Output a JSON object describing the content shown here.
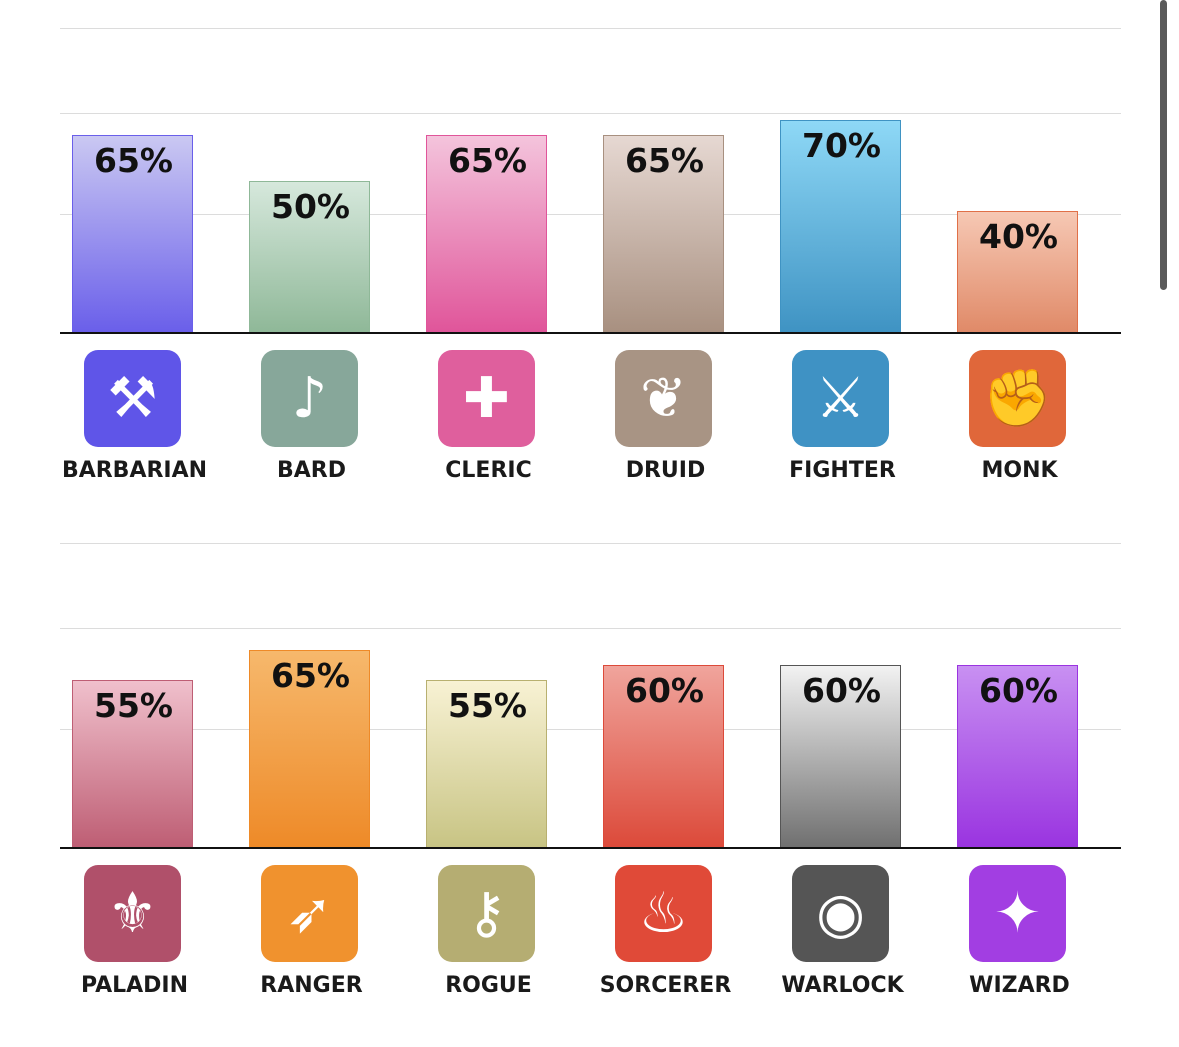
{
  "chart_data": [
    {
      "type": "bar",
      "categories": [
        "BARBARIAN",
        "BARD",
        "CLERIC",
        "DRUID",
        "FIGHTER",
        "MONK"
      ],
      "values": [
        65,
        50,
        65,
        65,
        70,
        40
      ],
      "value_labels": [
        "65%",
        "50%",
        "65%",
        "65%",
        "70%",
        "40%"
      ],
      "unit": "%",
      "ylim": [
        0,
        100
      ],
      "grid": true,
      "colors": [
        {
          "top": "#cac8f2",
          "bottom": "#6a5fea",
          "border": "#6a5fea",
          "icon": "#5f55e8",
          "glyph": "⚒",
          "icon_name": "battle-axe-icon"
        },
        {
          "top": "#d6e8dc",
          "bottom": "#8fb898",
          "border": "#8fb898",
          "icon": "#87a79a",
          "glyph": "♪",
          "icon_name": "lyre-icon"
        },
        {
          "top": "#f4c4dc",
          "bottom": "#e0559a",
          "border": "#e0559a",
          "icon": "#df5f9d",
          "glyph": "✚",
          "icon_name": "holy-symbol-icon"
        },
        {
          "top": "#e6d8d2",
          "bottom": "#a89080",
          "border": "#a89080",
          "icon": "#a89484",
          "glyph": "❦",
          "icon_name": "paw-icon"
        },
        {
          "top": "#8ed8f6",
          "bottom": "#3f93c3",
          "border": "#3f93c3",
          "icon": "#3f92c4",
          "glyph": "⚔",
          "icon_name": "crossed-swords-icon"
        },
        {
          "top": "#f6c8b4",
          "bottom": "#e08a68",
          "border": "#e07048",
          "icon": "#e0673a",
          "glyph": "✊",
          "icon_name": "fist-icon"
        }
      ]
    },
    {
      "type": "bar",
      "categories": [
        "PALADIN",
        "RANGER",
        "ROGUE",
        "SORCERER",
        "WARLOCK",
        "WIZARD"
      ],
      "values": [
        55,
        65,
        55,
        60,
        60,
        60
      ],
      "value_labels": [
        "55%",
        "65%",
        "55%",
        "60%",
        "60%",
        "60%"
      ],
      "unit": "%",
      "ylim": [
        0,
        100
      ],
      "grid": true,
      "colors": [
        {
          "top": "#f0c0cc",
          "bottom": "#be5e74",
          "border": "#be5e74",
          "icon": "#b0506a",
          "glyph": "⚜",
          "icon_name": "helmet-icon"
        },
        {
          "top": "#f6b86c",
          "bottom": "#ee8a28",
          "border": "#ee8a28",
          "icon": "#f0922e",
          "glyph": "➶",
          "icon_name": "bow-arrow-icon"
        },
        {
          "top": "#f8f2d4",
          "bottom": "#c8c484",
          "border": "#b8b070",
          "icon": "#b5ad72",
          "glyph": "⚷",
          "icon_name": "dagger-key-icon"
        },
        {
          "top": "#f0a49c",
          "bottom": "#dc4a3a",
          "border": "#dc4a3a",
          "icon": "#e04a38",
          "glyph": "♨",
          "icon_name": "flame-icon"
        },
        {
          "top": "#f2f2f2",
          "bottom": "#707070",
          "border": "#555555",
          "icon": "#555555",
          "glyph": "◉",
          "icon_name": "eye-icon"
        },
        {
          "top": "#c890f2",
          "bottom": "#9a34e0",
          "border": "#9a34e0",
          "icon": "#a23ee2",
          "glyph": "✦",
          "icon_name": "spellbook-icon"
        }
      ]
    }
  ]
}
